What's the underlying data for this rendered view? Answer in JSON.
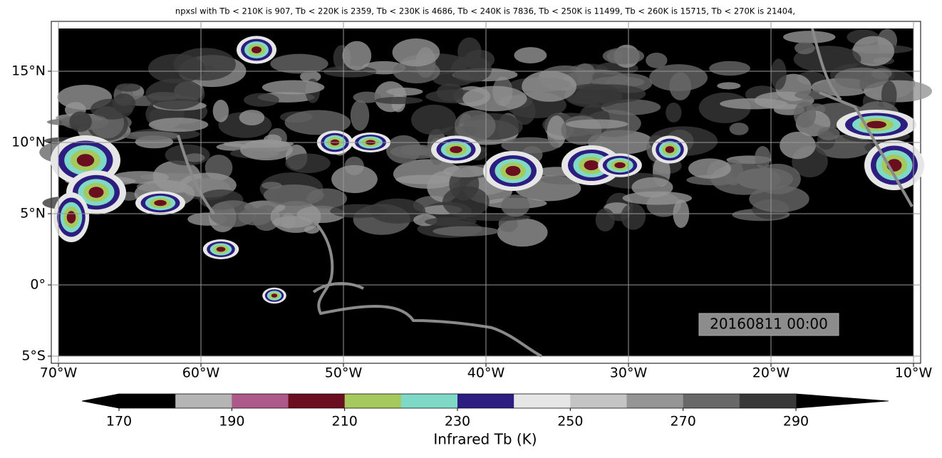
{
  "map": {
    "title": "npxsl with Tb < 210K is 907,  Tb < 220K is 2359,  Tb < 230K is 4686,  Tb < 240K is 7836,  Tb < 250K is 11499,  Tb < 260K is 15715,  Tb < 270K is 21404,",
    "xlim": [
      -70.5,
      -9.5
    ],
    "ylim": [
      -5.5,
      18.5
    ],
    "xticks": [
      {
        "value": -70,
        "label": "70°W"
      },
      {
        "value": -60,
        "label": "60°W"
      },
      {
        "value": -50,
        "label": "50°W"
      },
      {
        "value": -40,
        "label": "40°W"
      },
      {
        "value": -30,
        "label": "30°W"
      },
      {
        "value": -20,
        "label": "20°W"
      },
      {
        "value": -10,
        "label": "10°W"
      }
    ],
    "yticks": [
      {
        "value": 15,
        "label": "15°N"
      },
      {
        "value": 10,
        "label": "10°N"
      },
      {
        "value": 5,
        "label": "5°N"
      },
      {
        "value": 0,
        "label": "0°"
      },
      {
        "value": -5,
        "label": "5°S"
      }
    ],
    "grid": true,
    "annotation": "20160811 00:00",
    "colorbar": {
      "label": "Infrared Tb (K)",
      "levels": [
        170,
        180,
        190,
        200,
        210,
        220,
        230,
        240,
        250,
        260,
        270,
        280,
        290
      ],
      "colors": [
        "#000000",
        "#b5b5b5",
        "#ad5a8a",
        "#6b0e1f",
        "#a6c95e",
        "#7ed9c6",
        "#2e1d80",
        "#e6e6e6",
        "#c4c4c4",
        "#959595",
        "#686868",
        "#383838"
      ],
      "ticks": [
        170,
        190,
        210,
        230,
        250,
        270,
        290
      ]
    }
  }
}
